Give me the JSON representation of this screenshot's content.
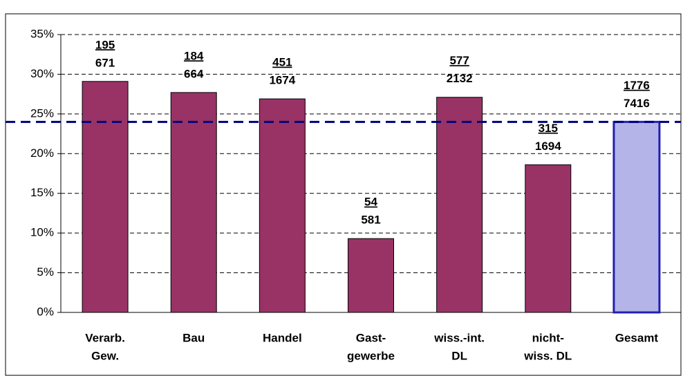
{
  "chart_data": {
    "type": "bar",
    "categories": [
      [
        "Verarb.",
        "Gew."
      ],
      [
        "Bau"
      ],
      [
        "Handel"
      ],
      [
        "Gast-",
        "gewerbe"
      ],
      [
        "wiss.-int.",
        "DL"
      ],
      [
        "nicht-",
        "wiss. DL"
      ],
      [
        "Gesamt"
      ]
    ],
    "values": [
      29.1,
      27.7,
      26.9,
      9.3,
      27.1,
      18.6,
      24.0
    ],
    "counts": [
      195,
      184,
      451,
      54,
      577,
      315,
      1776
    ],
    "totals": [
      671,
      664,
      1674,
      581,
      2132,
      1694,
      7416
    ],
    "colors": [
      "#993366",
      "#993366",
      "#993366",
      "#993366",
      "#993366",
      "#993366",
      "#b4b4e8"
    ],
    "reference_line": 24,
    "reference_color": "#000080",
    "ylim": [
      0,
      35
    ],
    "yticks": [
      {
        "value": 0,
        "label": "0%"
      },
      {
        "value": 5,
        "label": "5%"
      },
      {
        "value": 10,
        "label": "10%"
      },
      {
        "value": 15,
        "label": "15%"
      },
      {
        "value": 20,
        "label": "20%"
      },
      {
        "value": 25,
        "label": "25%"
      },
      {
        "value": 30,
        "label": "30%"
      },
      {
        "value": 35,
        "label": "35%"
      }
    ],
    "grid": true
  }
}
